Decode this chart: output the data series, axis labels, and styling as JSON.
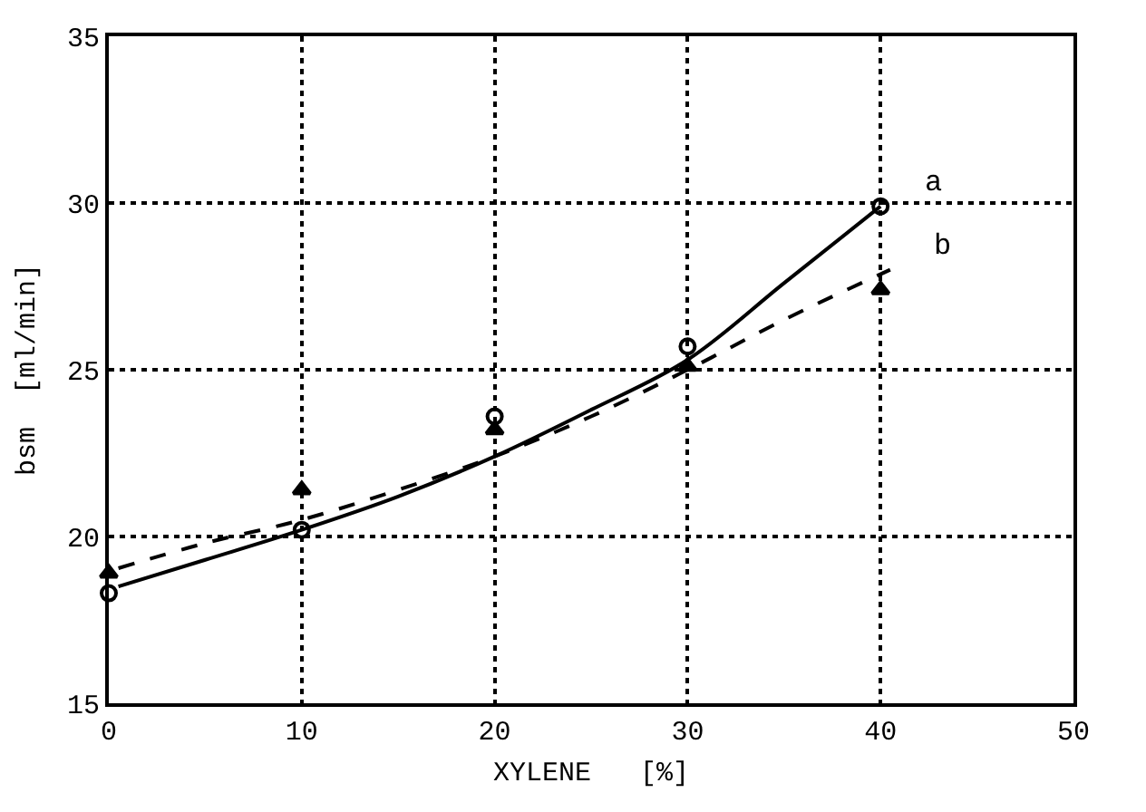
{
  "chart_data": {
    "type": "line",
    "xlabel": "XYLENE   [%]",
    "ylabel": "bsm  [ml/min]",
    "xlim": [
      0,
      50
    ],
    "xticks": [
      0,
      10,
      20,
      30,
      40,
      50
    ],
    "ylim": [
      15,
      35
    ],
    "yticks": [
      15,
      20,
      25,
      30,
      35
    ],
    "grid": true,
    "series": [
      {
        "name": "a",
        "color": "#000000",
        "line_style": "solid",
        "marker": "none",
        "x": [
          0.5,
          5,
          10,
          15,
          20,
          25,
          30,
          35,
          40
        ],
        "values": [
          18.5,
          19.3,
          20.2,
          21.2,
          22.4,
          23.8,
          25.3,
          27.6,
          29.9
        ]
      },
      {
        "name": "b",
        "color": "#000000",
        "line_style": "dashed",
        "marker": "none",
        "x": [
          0.5,
          5,
          10,
          15,
          20,
          25,
          30,
          35,
          40.5
        ],
        "values": [
          19.05,
          19.8,
          20.5,
          21.4,
          22.4,
          23.6,
          25.0,
          26.5,
          28.0
        ]
      },
      {
        "type": "scatter",
        "color": "#000000",
        "marker": "circle",
        "x": [
          0,
          10,
          20,
          30,
          40
        ],
        "values": [
          18.3,
          20.2,
          23.6,
          25.7,
          29.9
        ]
      },
      {
        "type": "scatter",
        "color": "#000000",
        "marker": "triangle",
        "x": [
          0,
          10,
          20,
          30,
          40
        ],
        "values": [
          18.9,
          21.4,
          23.2,
          25.1,
          27.4
        ]
      }
    ]
  }
}
